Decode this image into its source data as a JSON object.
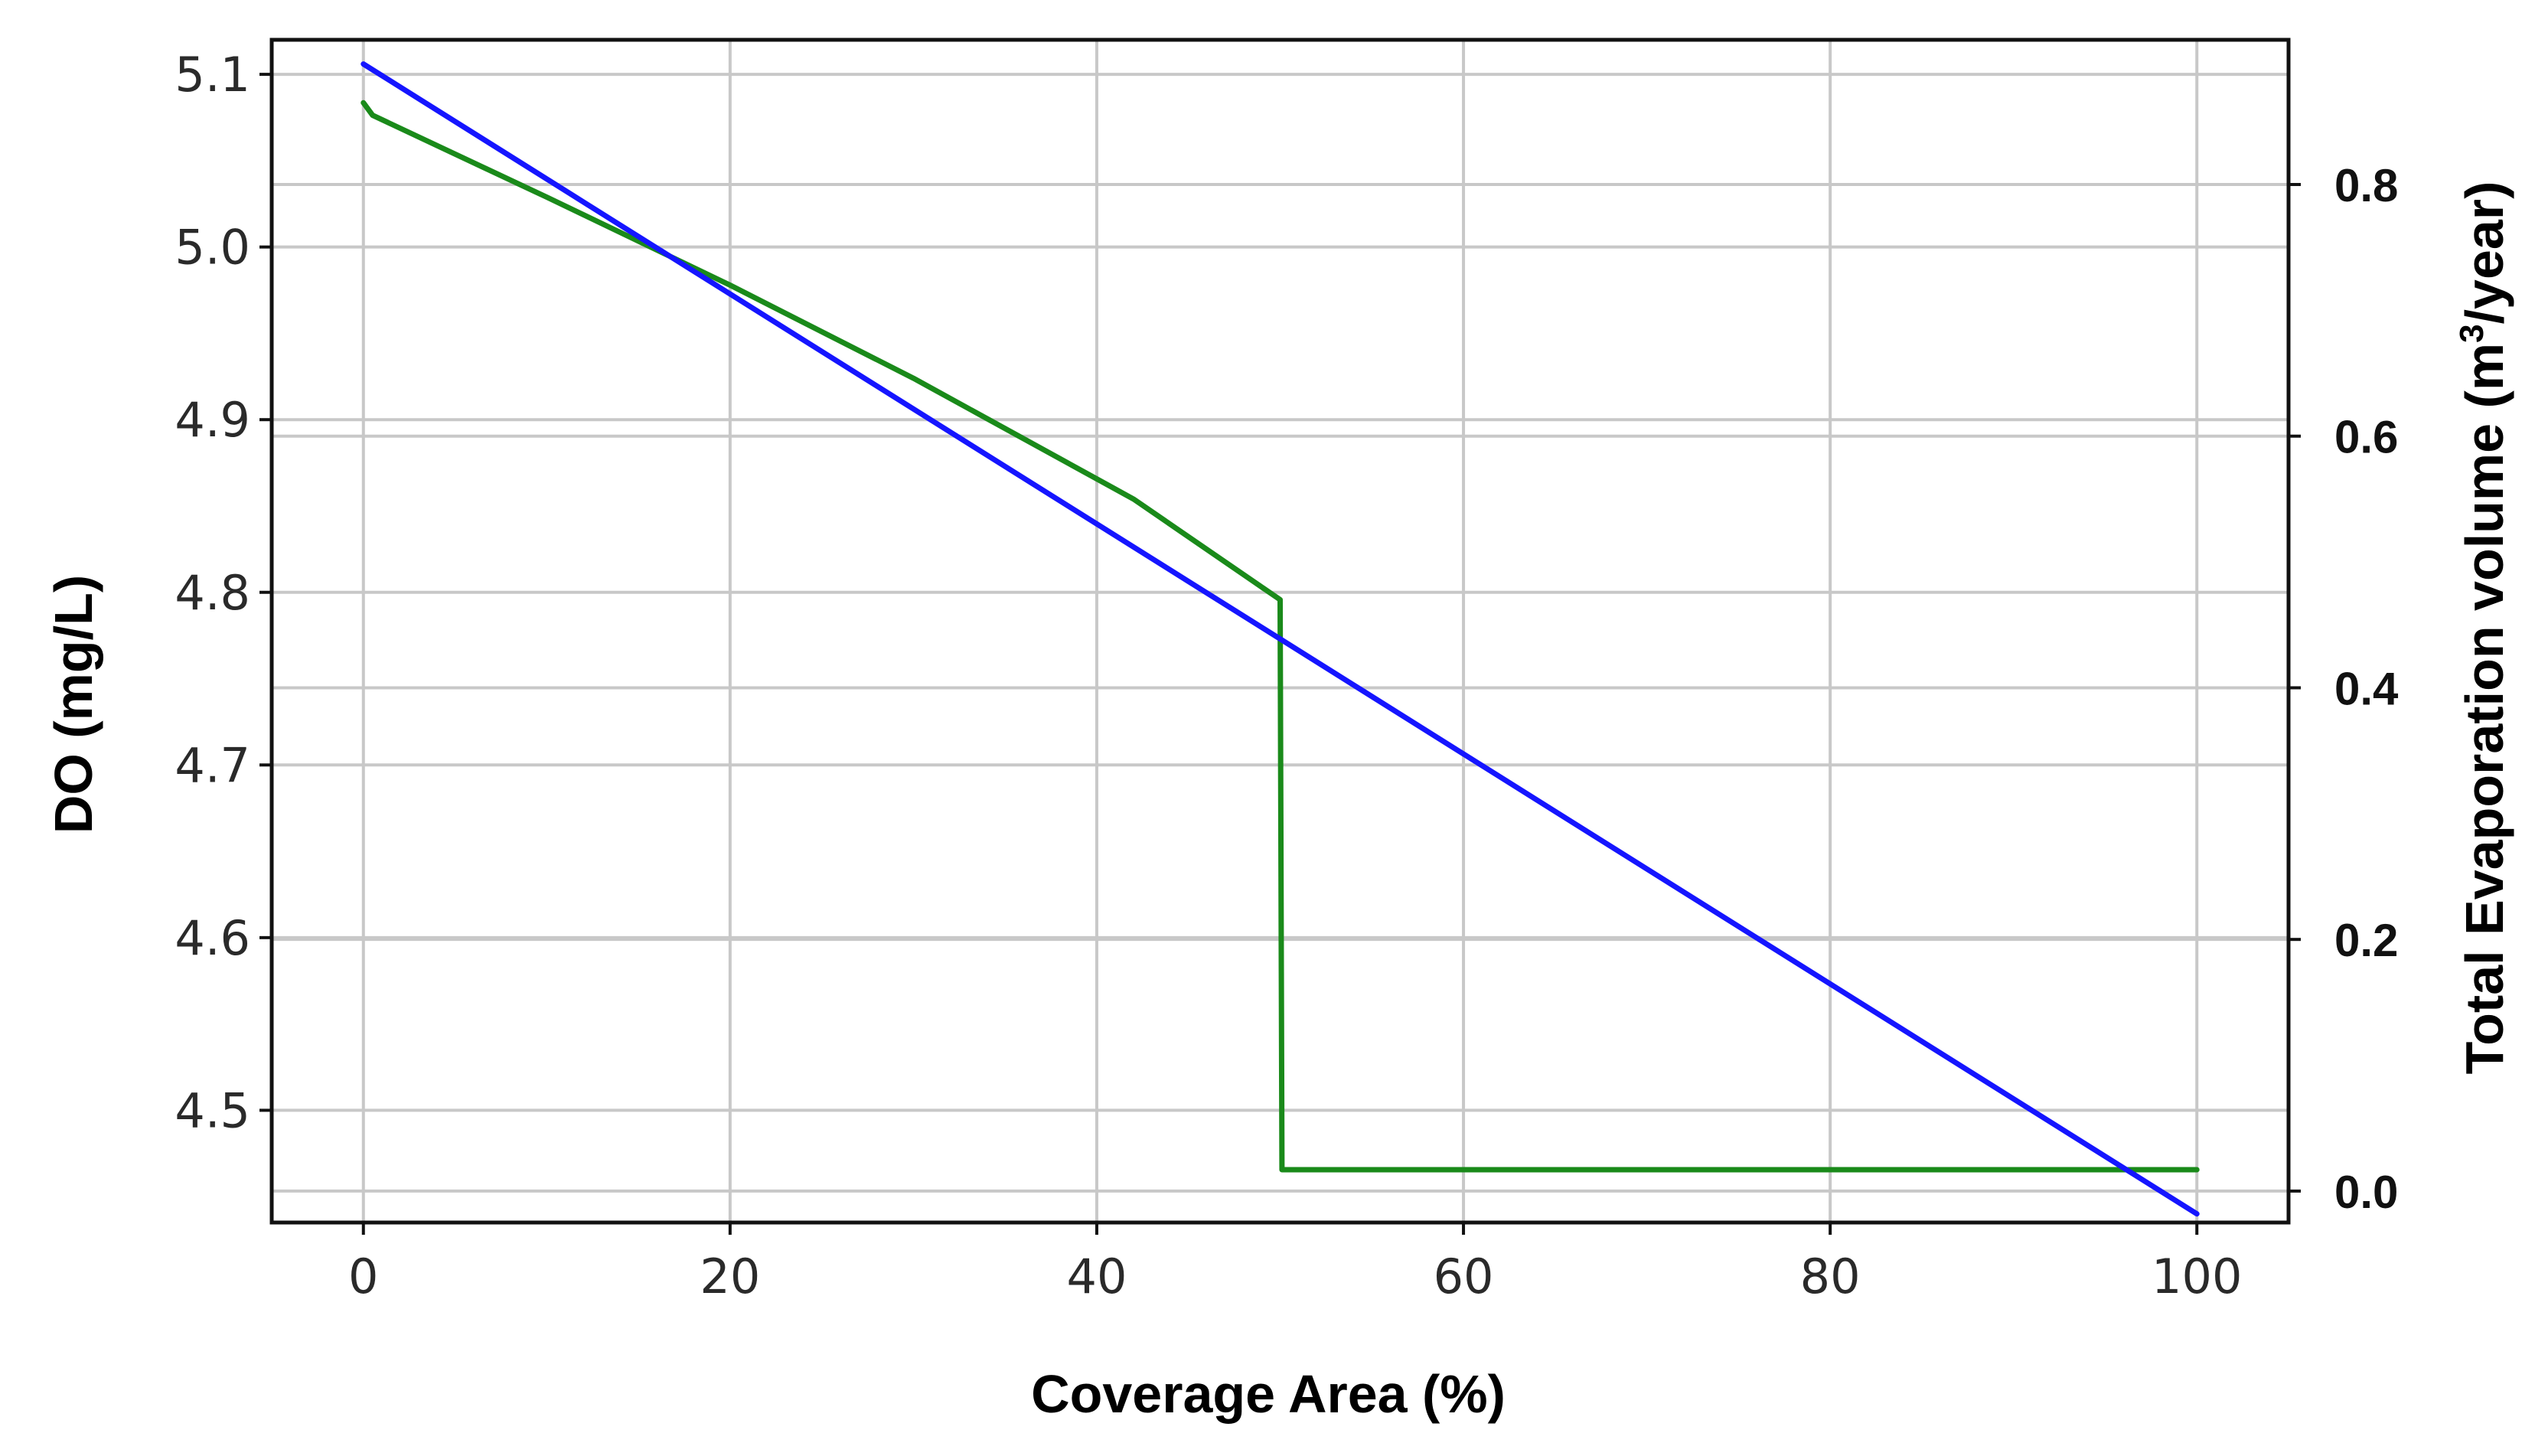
{
  "chart_data": {
    "type": "line",
    "xlabel": "Coverage Area (%)",
    "ylabel_left": "DO (mg/L)",
    "ylabel_right": {
      "text": "Total Evaporation volume (m",
      "sup": "3",
      "end": "/year)"
    },
    "xlim": [
      -5,
      105
    ],
    "ylim_left": [
      4.435,
      5.12
    ],
    "ylim_right": [
      -0.025,
      0.915
    ],
    "x_ticks": [
      0,
      20,
      40,
      60,
      80,
      100
    ],
    "y_left_ticks": [
      4.5,
      4.6,
      4.7,
      4.8,
      4.9,
      5.0,
      5.1
    ],
    "y_right_ticks": [
      0.0,
      0.2,
      0.4,
      0.6,
      0.8
    ],
    "grid": true,
    "legend": false,
    "series": [
      {
        "axis": "right",
        "color": "#1a8a1a",
        "x": [
          0,
          0.5,
          10,
          20,
          30,
          42,
          50,
          50.1,
          100
        ],
        "y": [
          0.865,
          0.855,
          0.79,
          0.72,
          0.646,
          0.55,
          0.47,
          0.017,
          0.017
        ]
      },
      {
        "axis": "left",
        "color": "#1515ff",
        "x": [
          0,
          100
        ],
        "y": [
          5.106,
          4.44
        ]
      }
    ]
  }
}
